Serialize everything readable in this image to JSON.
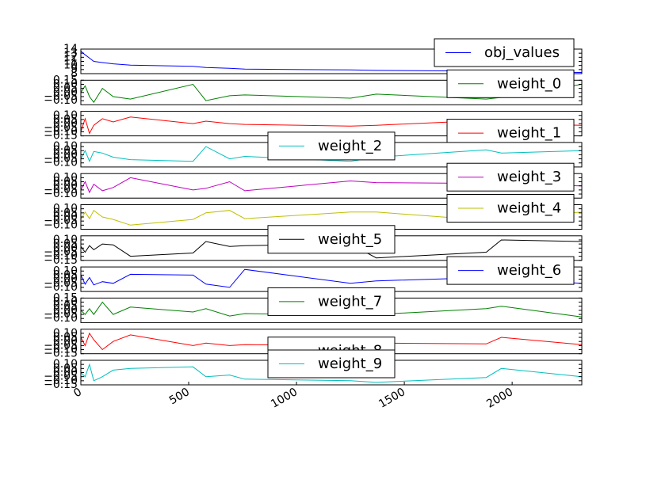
{
  "chart_data": [
    {
      "type": "line",
      "x": [
        0,
        20,
        40,
        60,
        100,
        150,
        230,
        520,
        580,
        690,
        760,
        1250,
        1370,
        1880,
        1950,
        2323
      ],
      "xlim": [
        0,
        2323
      ],
      "ylim": [
        8,
        14
      ],
      "yticks": [
        8,
        9,
        10,
        11,
        12,
        13,
        14
      ],
      "legend": "upper right",
      "series": [
        {
          "name": "obj_values",
          "color": "#0000ff",
          "values": [
            13.5,
            12.6,
            11.8,
            11,
            10.7,
            10.4,
            10.1,
            9.8,
            9.5,
            9.3,
            9.1,
            8.9,
            8.8,
            8.6,
            8.5,
            8.3
          ]
        }
      ]
    },
    {
      "type": "line",
      "x": [
        0,
        20,
        40,
        60,
        100,
        150,
        230,
        520,
        580,
        690,
        760,
        1250,
        1370,
        1880,
        1950,
        2323
      ],
      "xlim": [
        0,
        2323
      ],
      "ylim": [
        -0.15,
        0.15
      ],
      "yticks": [
        {
          "value": -0.1,
          "label": "−0.10"
        },
        {
          "value": -0.05,
          "label": "−0.05"
        },
        {
          "value": 0,
          "label": "0.00"
        },
        {
          "value": 0.05,
          "label": "0.05"
        },
        {
          "value": 0.1,
          "label": "0.10"
        },
        {
          "value": 0.15,
          "label": "0.15"
        }
      ],
      "legend": "upper right",
      "series": [
        {
          "name": "weight_0",
          "color": "#008000",
          "values": [
            0,
            0.08,
            -0.05,
            -0.12,
            0.05,
            -0.05,
            -0.08,
            0.1,
            -0.1,
            -0.04,
            -0.03,
            -0.07,
            -0.02,
            -0.08,
            -0.06,
            0.1
          ]
        }
      ]
    },
    {
      "type": "line",
      "x": [
        0,
        20,
        40,
        60,
        100,
        150,
        230,
        520,
        580,
        690,
        760,
        1250,
        1370,
        1880,
        1950,
        2323
      ],
      "xlim": [
        0,
        2323
      ],
      "ylim": [
        -0.15,
        0.15
      ],
      "yticks": [
        {
          "value": -0.15,
          "label": "−0.15"
        },
        {
          "value": -0.1,
          "label": "−0.10"
        },
        {
          "value": -0.05,
          "label": "−0.05"
        },
        {
          "value": 0,
          "label": "0.00"
        },
        {
          "value": 0.05,
          "label": "0.05"
        },
        {
          "value": 0.1,
          "label": "0.10"
        }
      ],
      "legend": "lower right",
      "series": [
        {
          "name": "weight_1",
          "color": "#ff0000",
          "values": [
            -0.1,
            0.06,
            -0.12,
            -0.02,
            0.06,
            0.02,
            0.08,
            0,
            0.03,
            0,
            -0.01,
            -0.03,
            -0.02,
            0.04,
            0,
            -0.02
          ]
        }
      ]
    },
    {
      "type": "line",
      "x": [
        0,
        20,
        40,
        60,
        100,
        150,
        230,
        520,
        580,
        690,
        760,
        1250,
        1370,
        1880,
        1950,
        2323
      ],
      "xlim": [
        0,
        2323
      ],
      "ylim": [
        -0.15,
        0.15
      ],
      "yticks": [
        {
          "value": -0.1,
          "label": "−0.10"
        },
        {
          "value": -0.05,
          "label": "−0.05"
        },
        {
          "value": 0,
          "label": "0.00"
        },
        {
          "value": 0.05,
          "label": "0.05"
        },
        {
          "value": 0.1,
          "label": "0.10"
        }
      ],
      "legend": "upper center",
      "series": [
        {
          "name": "weight_2",
          "color": "#00bfbf",
          "values": [
            -0.05,
            0.05,
            -0.08,
            0.04,
            0.02,
            -0.03,
            -0.06,
            -0.08,
            0.1,
            -0.05,
            -0.02,
            -0.08,
            -0.03,
            0.06,
            0.02,
            0.05
          ]
        }
      ]
    },
    {
      "type": "line",
      "x": [
        0,
        20,
        40,
        60,
        100,
        150,
        230,
        520,
        580,
        690,
        760,
        1250,
        1370,
        1880,
        1950,
        2323
      ],
      "xlim": [
        0,
        2323
      ],
      "ylim": [
        -0.15,
        0.15
      ],
      "yticks": [
        {
          "value": -0.1,
          "label": "−0.10"
        },
        {
          "value": -0.05,
          "label": "−0.05"
        },
        {
          "value": 0,
          "label": "0.00"
        },
        {
          "value": 0.05,
          "label": "0.05"
        },
        {
          "value": 0.1,
          "label": "0.10"
        }
      ],
      "legend": "upper right",
      "series": [
        {
          "name": "weight_3",
          "color": "#bf00bf",
          "values": [
            -0.05,
            0.05,
            -0.08,
            0.02,
            -0.06,
            -0.02,
            0.1,
            -0.05,
            -0.03,
            0.05,
            -0.06,
            0.06,
            0.04,
            0.03,
            0.02,
            0
          ]
        }
      ]
    },
    {
      "type": "line",
      "x": [
        0,
        20,
        40,
        60,
        100,
        150,
        230,
        520,
        580,
        690,
        760,
        1250,
        1370,
        1880,
        1950,
        2323
      ],
      "xlim": [
        0,
        2323
      ],
      "ylim": [
        -0.15,
        0.15
      ],
      "yticks": [
        {
          "value": -0.1,
          "label": "−0.10"
        },
        {
          "value": -0.05,
          "label": "−0.05"
        },
        {
          "value": 0,
          "label": "0.00"
        },
        {
          "value": 0.05,
          "label": "0.05"
        },
        {
          "value": 0.1,
          "label": "0.10"
        }
      ],
      "legend": "upper right",
      "series": [
        {
          "name": "weight_4",
          "color": "#bfbf00",
          "values": [
            -0.03,
            0.06,
            -0.02,
            0.08,
            0,
            -0.03,
            -0.1,
            -0.03,
            0.05,
            0.08,
            -0.02,
            0.06,
            0.06,
            -0.04,
            -0.02,
            0.06
          ]
        }
      ]
    },
    {
      "type": "line",
      "x": [
        0,
        20,
        40,
        60,
        100,
        150,
        230,
        520,
        580,
        690,
        760,
        1250,
        1370,
        1880,
        1950,
        2323
      ],
      "xlim": [
        0,
        2323
      ],
      "ylim": [
        -0.15,
        0.15
      ],
      "yticks": [
        {
          "value": -0.15,
          "label": "−0.15"
        },
        {
          "value": -0.1,
          "label": "−0.10"
        },
        {
          "value": -0.05,
          "label": "−0.05"
        },
        {
          "value": 0,
          "label": "0.00"
        },
        {
          "value": 0.05,
          "label": "0.05"
        },
        {
          "value": 0.1,
          "label": "0.10"
        }
      ],
      "legend": "upper center",
      "series": [
        {
          "name": "weight_5",
          "color": "#000000",
          "values": [
            0.02,
            -0.05,
            0.03,
            -0.02,
            0.05,
            0.04,
            -0.1,
            -0.06,
            0.08,
            0.02,
            0.03,
            0.05,
            -0.12,
            -0.05,
            0.1,
            0.08
          ]
        }
      ]
    },
    {
      "type": "line",
      "x": [
        0,
        20,
        40,
        60,
        100,
        150,
        230,
        520,
        580,
        690,
        760,
        1250,
        1370,
        1880,
        1950,
        2323
      ],
      "xlim": [
        0,
        2323
      ],
      "ylim": [
        -0.15,
        0.15
      ],
      "yticks": [
        {
          "value": -0.1,
          "label": "−0.10"
        },
        {
          "value": -0.05,
          "label": "−0.05"
        },
        {
          "value": 0,
          "label": "0.00"
        },
        {
          "value": 0.05,
          "label": "0.05"
        },
        {
          "value": 0.1,
          "label": "0.10"
        }
      ],
      "legend": "upper right",
      "series": [
        {
          "name": "weight_6",
          "color": "#0000ff",
          "values": [
            0.05,
            -0.06,
            0.02,
            -0.07,
            -0.03,
            -0.05,
            0.06,
            0.05,
            -0.06,
            -0.1,
            0.12,
            -0.05,
            -0.02,
            0.02,
            0,
            -0.05
          ]
        }
      ]
    },
    {
      "type": "line",
      "x": [
        0,
        20,
        40,
        60,
        100,
        150,
        230,
        520,
        580,
        690,
        760,
        1250,
        1370,
        1880,
        1950,
        2323
      ],
      "xlim": [
        0,
        2323
      ],
      "ylim": [
        -0.15,
        0.15
      ],
      "yticks": [
        {
          "value": -0.1,
          "label": "−0.10"
        },
        {
          "value": -0.05,
          "label": "−0.05"
        },
        {
          "value": 0,
          "label": "0.00"
        },
        {
          "value": 0.05,
          "label": "0.05"
        },
        {
          "value": 0.1,
          "label": "0.10"
        },
        {
          "value": 0.15,
          "label": "0.15"
        }
      ],
      "legend": "upper center",
      "series": [
        {
          "name": "weight_7",
          "color": "#008000",
          "values": [
            0,
            -0.05,
            0.02,
            -0.05,
            0.1,
            -0.05,
            0.04,
            -0.02,
            0.02,
            -0.07,
            -0.04,
            -0.06,
            -0.05,
            0.02,
            0.05,
            -0.08
          ]
        }
      ]
    },
    {
      "type": "line",
      "x": [
        0,
        20,
        40,
        60,
        100,
        150,
        230,
        520,
        580,
        690,
        760,
        1250,
        1370,
        1880,
        1950,
        2323
      ],
      "xlim": [
        0,
        2323
      ],
      "ylim": [
        -0.15,
        0.15
      ],
      "yticks": [
        {
          "value": -0.15,
          "label": "−0.15"
        },
        {
          "value": -0.1,
          "label": "−0.10"
        },
        {
          "value": -0.05,
          "label": "−0.05"
        },
        {
          "value": 0,
          "label": "0.00"
        },
        {
          "value": 0.05,
          "label": "0.05"
        },
        {
          "value": 0.1,
          "label": "0.10"
        }
      ],
      "legend": "lower center",
      "series": [
        {
          "name": "weight_8",
          "color": "#ff0000",
          "values": [
            0.05,
            -0.05,
            0.1,
            0.02,
            -0.1,
            0,
            0.08,
            -0.05,
            -0.02,
            -0.05,
            -0.04,
            -0.05,
            -0.02,
            -0.03,
            0.05,
            -0.04
          ]
        }
      ]
    },
    {
      "type": "line",
      "x": [
        0,
        20,
        40,
        60,
        100,
        150,
        230,
        520,
        580,
        690,
        760,
        1250,
        1370,
        1880,
        1950,
        2323
      ],
      "xlim": [
        0,
        2323
      ],
      "ylim": [
        -0.15,
        0.15
      ],
      "yticks": [
        {
          "value": -0.15,
          "label": "−0.15"
        },
        {
          "value": -0.1,
          "label": "−0.10"
        },
        {
          "value": -0.05,
          "label": "−0.05"
        },
        {
          "value": 0,
          "label": "0.00"
        },
        {
          "value": 0.05,
          "label": "0.05"
        },
        {
          "value": 0.1,
          "label": "0.10"
        }
      ],
      "legend": "upper center",
      "xticks": [
        0,
        500,
        1000,
        1500,
        2000
      ],
      "series": [
        {
          "name": "weight_9",
          "color": "#00bfbf",
          "values": [
            0,
            -0.05,
            0.1,
            -0.1,
            -0.05,
            0.03,
            0.05,
            0.07,
            -0.05,
            -0.03,
            -0.08,
            -0.1,
            -0.12,
            -0.06,
            0.05,
            -0.05
          ]
        }
      ]
    }
  ]
}
